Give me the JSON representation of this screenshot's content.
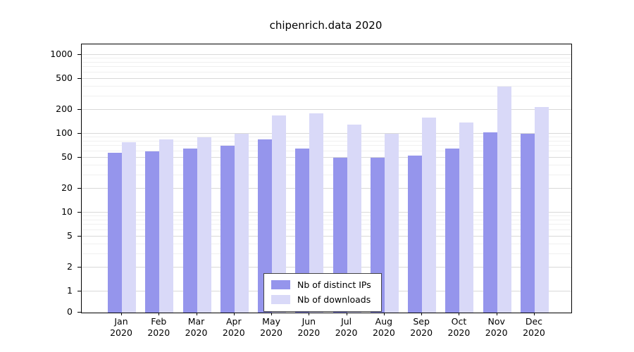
{
  "chart_data": {
    "type": "bar",
    "title": "chipenrich.data 2020",
    "y_scale": "log",
    "grid": true,
    "legend_position": "bottom-center",
    "categories": [
      "Jan",
      "Feb",
      "Mar",
      "Apr",
      "May",
      "Jun",
      "Jul",
      "Aug",
      "Sep",
      "Oct",
      "Nov",
      "Dec"
    ],
    "x_year": "2020",
    "y_ticks": [
      0,
      1,
      2,
      5,
      10,
      20,
      50,
      100,
      200,
      500,
      1000
    ],
    "ylim": [
      0,
      1000
    ],
    "series": [
      {
        "name": "Nb of distinct IPs",
        "color": "#9595ec",
        "values": [
          57,
          60,
          65,
          70,
          85,
          65,
          50,
          50,
          53,
          65,
          105,
          100
        ]
      },
      {
        "name": "Nb of downloads",
        "color": "#d9d9f8",
        "values": [
          78,
          85,
          90,
          100,
          170,
          180,
          130,
          100,
          162,
          140,
          400,
          220
        ]
      }
    ]
  }
}
